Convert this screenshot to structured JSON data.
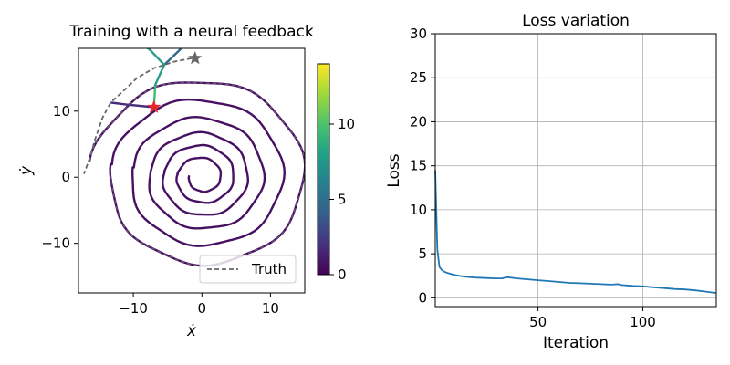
{
  "chart_data": [
    {
      "type": "line",
      "title": "Training with a neural feedback",
      "xlabel": "ẋ",
      "ylabel": "ẏ",
      "xlim": [
        -18,
        15
      ],
      "ylim": [
        -17.5,
        19.5
      ],
      "xticks": [
        -10,
        0,
        10
      ],
      "xtick_labels": [
        "−10",
        "0",
        "10"
      ],
      "yticks": [
        -10,
        0,
        10
      ],
      "ytick_labels": [
        "−10",
        "0",
        "10"
      ],
      "grid": false,
      "legend": {
        "placement": "lower right",
        "entries": [
          "Truth"
        ]
      },
      "series": [
        {
          "name": "Truth",
          "style": "dashed",
          "color": "#666666",
          "points": [
            [
              -1.5,
              18.0
            ],
            [
              -4,
              17.5
            ],
            [
              -7,
              16.5
            ],
            [
              -9.5,
              15.0
            ],
            [
              -11.5,
              13.0
            ],
            [
              -13.3,
              11.3
            ],
            [
              -14.5,
              9.0
            ],
            [
              -15.5,
              6.0
            ],
            [
              -16.5,
              2.5
            ],
            [
              -17.2,
              0.5
            ]
          ]
        },
        {
          "name": "",
          "style": "solid",
          "colormap": "viridis",
          "description_of_color": "loss-colored trajectory",
          "spiral": {
            "turns": [
              {
                "r_start": 16.0,
                "r_end": 13.0
              },
              {
                "r_start": 13.0,
                "r_end": 10.0
              },
              {
                "r_start": 10.0,
                "r_end": 7.5
              },
              {
                "r_start": 7.5,
                "r_end": 5.5
              },
              {
                "r_start": 5.5,
                "r_end": 3.5
              },
              {
                "r_start": 3.5,
                "r_end": 1.8
              }
            ],
            "center": [
              0,
              0
            ]
          },
          "lead_in": [
            [
              -13.3,
              11.3
            ],
            [
              -11,
              11.0
            ],
            [
              -7,
              10.6
            ]
          ],
          "upper_branch": [
            [
              -7,
              10.6
            ],
            [
              -6.8,
              14
            ],
            [
              -5.5,
              17
            ],
            [
              -3,
              19.5
            ]
          ]
        }
      ],
      "markers": [
        {
          "name": "start",
          "x": -1.0,
          "y": 18.0,
          "color": "#666666",
          "shape": "star"
        },
        {
          "name": "learned-start",
          "x": -7.0,
          "y": 10.6,
          "color": "#e8252c",
          "shape": "star"
        }
      ],
      "colorbar": {
        "colormap": "viridis",
        "range": [
          0,
          14
        ],
        "ticks": [
          0,
          5,
          10
        ],
        "tick_labels": [
          "0",
          "5",
          "10"
        ]
      }
    },
    {
      "type": "line",
      "title": "Loss variation",
      "xlabel": "Iteration",
      "ylabel": "Loss",
      "xlim": [
        1,
        135
      ],
      "ylim": [
        -1,
        30
      ],
      "xticks": [
        50,
        100
      ],
      "xtick_labels": [
        "50",
        "100"
      ],
      "yticks": [
        0,
        5,
        10,
        15,
        20,
        25,
        30
      ],
      "ytick_labels": [
        "0",
        "5",
        "10",
        "15",
        "20",
        "25",
        "30"
      ],
      "grid": true,
      "series": [
        {
          "name": "",
          "color": "#1f77b4",
          "x": [
            1,
            2,
            3,
            4,
            5,
            7,
            10,
            15,
            20,
            25,
            30,
            33,
            35,
            40,
            45,
            50,
            55,
            60,
            65,
            70,
            75,
            80,
            85,
            88,
            90,
            95,
            100,
            105,
            110,
            115,
            120,
            125,
            130,
            135
          ],
          "y": [
            14.5,
            5.5,
            3.5,
            3.2,
            3.0,
            2.8,
            2.6,
            2.4,
            2.3,
            2.25,
            2.2,
            2.2,
            2.35,
            2.2,
            2.1,
            2.0,
            1.9,
            1.8,
            1.7,
            1.65,
            1.6,
            1.55,
            1.5,
            1.55,
            1.45,
            1.35,
            1.3,
            1.2,
            1.1,
            1.0,
            0.95,
            0.85,
            0.7,
            0.55
          ]
        }
      ]
    }
  ]
}
